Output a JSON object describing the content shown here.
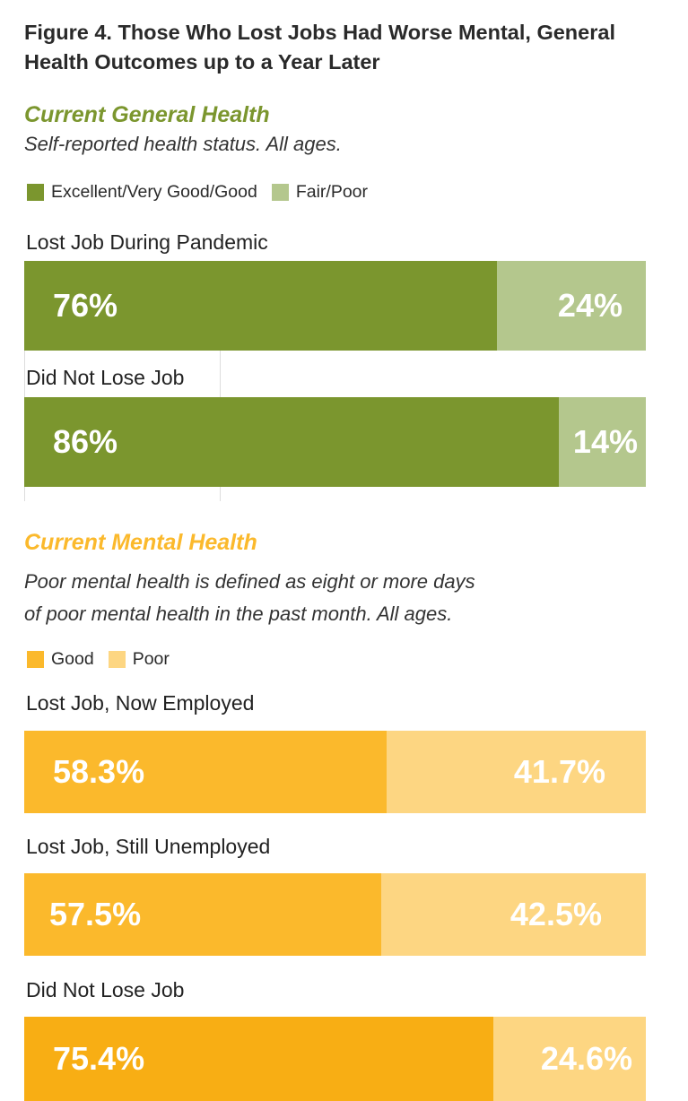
{
  "figure_title": "Figure 4. Those Who Lost Jobs Had Worse Mental, General Health Outcomes up to a Year Later",
  "colors": {
    "general_primary": "#7b962e",
    "general_secondary": "#b4c78d",
    "mental_primary": "#fbb92c",
    "mental_secondary": "#fdd682",
    "mental_primary_dark": "#f8ae14"
  },
  "general": {
    "title": "Current General Health",
    "subtitle": "Self-reported health status. All ages.",
    "legend": [
      {
        "label": "Excellent/Very Good/Good",
        "color": "#7b962e"
      },
      {
        "label": "Fair/Poor",
        "color": "#b4c78d"
      }
    ]
  },
  "mental": {
    "title": "Current Mental Health",
    "subtitle_line1": "Poor mental health is defined as eight or more days",
    "subtitle_line2": "of poor mental health in the past month. All ages.",
    "legend": [
      {
        "label": "Good",
        "color": "#fbb92c"
      },
      {
        "label": "Poor",
        "color": "#fdd682"
      }
    ]
  },
  "chart_data": [
    {
      "type": "bar",
      "orientation": "horizontal-stacked-100",
      "title": "Current General Health",
      "subtitle": "Self-reported health status. All ages.",
      "categories": [
        "Lost Job During Pandemic",
        "Did Not Lose Job"
      ],
      "series": [
        {
          "name": "Excellent/Very Good/Good",
          "values": [
            76,
            86
          ],
          "labels": [
            "76%",
            "86%"
          ]
        },
        {
          "name": "Fair/Poor",
          "values": [
            24,
            14
          ],
          "labels": [
            "24%",
            "14%"
          ]
        }
      ],
      "xlim": [
        0,
        100
      ],
      "legend": "top-left"
    },
    {
      "type": "bar",
      "orientation": "horizontal-stacked-100",
      "title": "Current Mental Health",
      "subtitle": "Poor mental health is defined as eight or more days of poor mental health in the past month. All ages.",
      "categories": [
        "Lost Job, Now Employed",
        "Lost Job, Still Unemployed",
        "Did Not Lose Job"
      ],
      "series": [
        {
          "name": "Good",
          "values": [
            58.3,
            57.5,
            75.4
          ],
          "labels": [
            "58.3%",
            "57.5%",
            "75.4%"
          ]
        },
        {
          "name": "Poor",
          "values": [
            41.7,
            42.5,
            24.6
          ],
          "labels": [
            "41.7%",
            "42.5%",
            "24.6%"
          ]
        }
      ],
      "xlim": [
        0,
        100
      ],
      "legend": "top-left"
    }
  ]
}
